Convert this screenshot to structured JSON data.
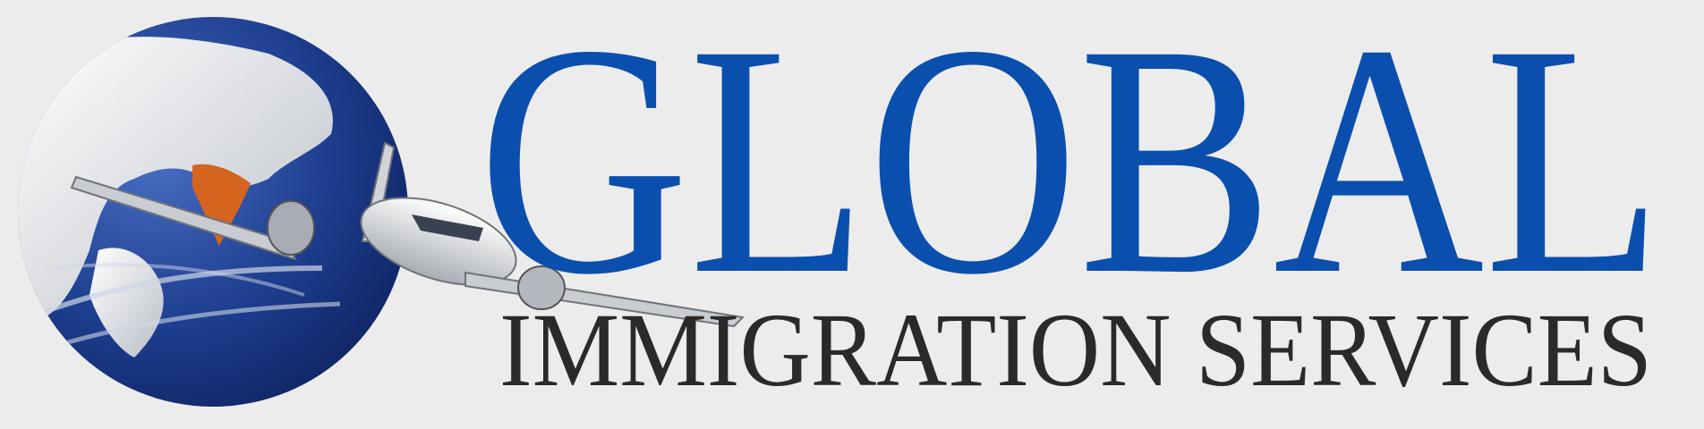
{
  "logo": {
    "title": "GLOBAL",
    "subtitle": "IMMIGRATION SERVICES"
  }
}
